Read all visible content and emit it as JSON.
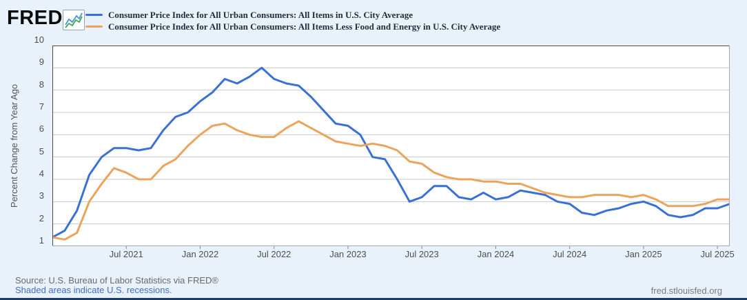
{
  "header": {
    "logo_text": "FRED",
    "logo_reg": "®",
    "legend": [
      {
        "label": "Consumer Price Index for All Urban Consumers: All Items in U.S. City Average",
        "color": "#3a6fd7"
      },
      {
        "label": "Consumer Price Index for All Urban Consumers: All Items Less Food and Energy in U.S. City Average",
        "color": "#eca35c"
      }
    ]
  },
  "footer": {
    "source": "Source: U.S. Bureau of Labor Statistics via FRED®",
    "recession_note": "Shaded areas indicate U.S. recessions.",
    "site": "fred.stlouisfed.org"
  },
  "chart_data": {
    "type": "line",
    "title": "",
    "xlabel": "",
    "ylabel": "Percent Change from Year Ago",
    "ylim": [
      1,
      10
    ],
    "yticks": [
      1,
      2,
      3,
      4,
      5,
      6,
      7,
      8,
      9,
      10
    ],
    "grid": "horizontal",
    "legend_position": "top-left",
    "x_months": [
      "2021-01",
      "2021-02",
      "2021-03",
      "2021-04",
      "2021-05",
      "2021-06",
      "2021-07",
      "2021-08",
      "2021-09",
      "2021-10",
      "2021-11",
      "2021-12",
      "2022-01",
      "2022-02",
      "2022-03",
      "2022-04",
      "2022-05",
      "2022-06",
      "2022-07",
      "2022-08",
      "2022-09",
      "2022-10",
      "2022-11",
      "2022-12",
      "2023-01",
      "2023-02",
      "2023-03",
      "2023-04",
      "2023-05",
      "2023-06",
      "2023-07",
      "2023-08",
      "2023-09",
      "2023-10",
      "2023-11",
      "2023-12",
      "2024-01",
      "2024-02",
      "2024-03",
      "2024-04",
      "2024-05",
      "2024-06",
      "2024-07",
      "2024-08",
      "2024-09",
      "2024-10",
      "2024-11",
      "2024-12",
      "2025-01",
      "2025-02",
      "2025-03",
      "2025-04",
      "2025-05",
      "2025-06",
      "2025-07",
      "2025-08"
    ],
    "xtick_labels": [
      "Jul 2021",
      "Jan 2022",
      "Jul 2022",
      "Jan 2023",
      "Jul 2023",
      "Jan 2024",
      "Jul 2024",
      "Jan 2025",
      "Jul 2025"
    ],
    "xtick_month_index": [
      6,
      12,
      18,
      24,
      30,
      36,
      42,
      48,
      54
    ],
    "series": [
      {
        "name": "Consumer Price Index for All Urban Consumers: All Items in U.S. City Average",
        "color": "#3a6fd7",
        "values": [
          1.4,
          1.7,
          2.6,
          4.2,
          5.0,
          5.4,
          5.4,
          5.3,
          5.4,
          6.2,
          6.8,
          7.0,
          7.5,
          7.9,
          8.5,
          8.3,
          8.6,
          9.0,
          8.5,
          8.3,
          8.2,
          7.7,
          7.1,
          6.5,
          6.4,
          6.0,
          5.0,
          4.9,
          4.0,
          3.0,
          3.2,
          3.7,
          3.7,
          3.2,
          3.1,
          3.4,
          3.1,
          3.2,
          3.5,
          3.4,
          3.3,
          3.0,
          2.9,
          2.5,
          2.4,
          2.6,
          2.7,
          2.9,
          3.0,
          2.8,
          2.4,
          2.3,
          2.4,
          2.7,
          2.7,
          2.9
        ]
      },
      {
        "name": "Consumer Price Index for All Urban Consumers: All Items Less Food and Energy in U.S. City Average",
        "color": "#eca35c",
        "values": [
          1.4,
          1.3,
          1.6,
          3.0,
          3.8,
          4.5,
          4.3,
          4.0,
          4.0,
          4.6,
          4.9,
          5.5,
          6.0,
          6.4,
          6.5,
          6.2,
          6.0,
          5.9,
          5.9,
          6.3,
          6.6,
          6.3,
          6.0,
          5.7,
          5.6,
          5.5,
          5.6,
          5.5,
          5.3,
          4.8,
          4.7,
          4.3,
          4.1,
          4.0,
          4.0,
          3.9,
          3.9,
          3.8,
          3.8,
          3.6,
          3.4,
          3.3,
          3.2,
          3.2,
          3.3,
          3.3,
          3.3,
          3.2,
          3.3,
          3.1,
          2.8,
          2.8,
          2.8,
          2.9,
          3.1,
          3.1
        ]
      }
    ]
  }
}
